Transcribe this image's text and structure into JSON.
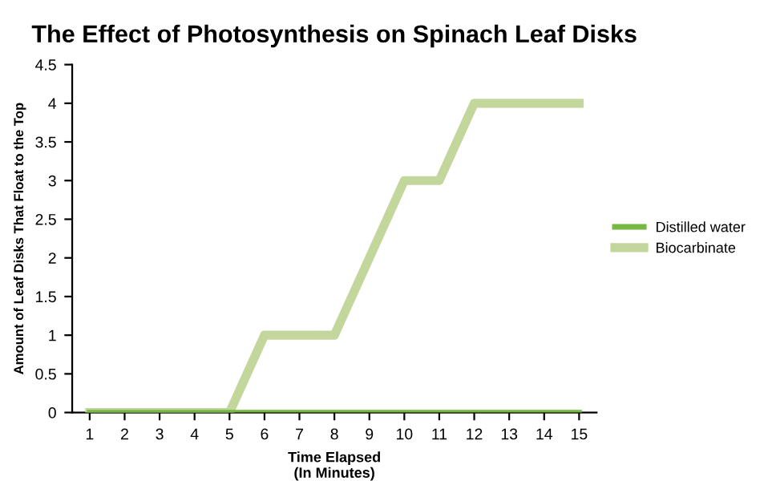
{
  "chart_data": {
    "type": "line",
    "title": "The Effect of Photosynthesis on Spinach Leaf Disks",
    "xlabel": "Time Elapsed\n(In Minutes)",
    "ylabel": "Amount of Leaf Disks That Float to the Top",
    "categories": [
      "1",
      "2",
      "3",
      "4",
      "5",
      "6",
      "7",
      "8",
      "9",
      "10",
      "11",
      "12",
      "13",
      "14",
      "15"
    ],
    "series": [
      {
        "name": "Distilled water",
        "color": "#77b843",
        "values": [
          0,
          0,
          0,
          0,
          0,
          0,
          0,
          0,
          0,
          0,
          0,
          0,
          0,
          0,
          0
        ]
      },
      {
        "name": "Biocarbinate",
        "color": "#c3d69b",
        "values": [
          0,
          0,
          0,
          0,
          0,
          1,
          1,
          1,
          2,
          3,
          3,
          4,
          4,
          4,
          4
        ]
      }
    ],
    "ylim": [
      0,
      4.5
    ],
    "yticks": [
      0,
      0.5,
      1,
      1.5,
      2,
      2.5,
      3,
      3.5,
      4,
      4.5
    ],
    "legend": "right",
    "grid": false,
    "marker": "none",
    "line_style": "solid"
  }
}
